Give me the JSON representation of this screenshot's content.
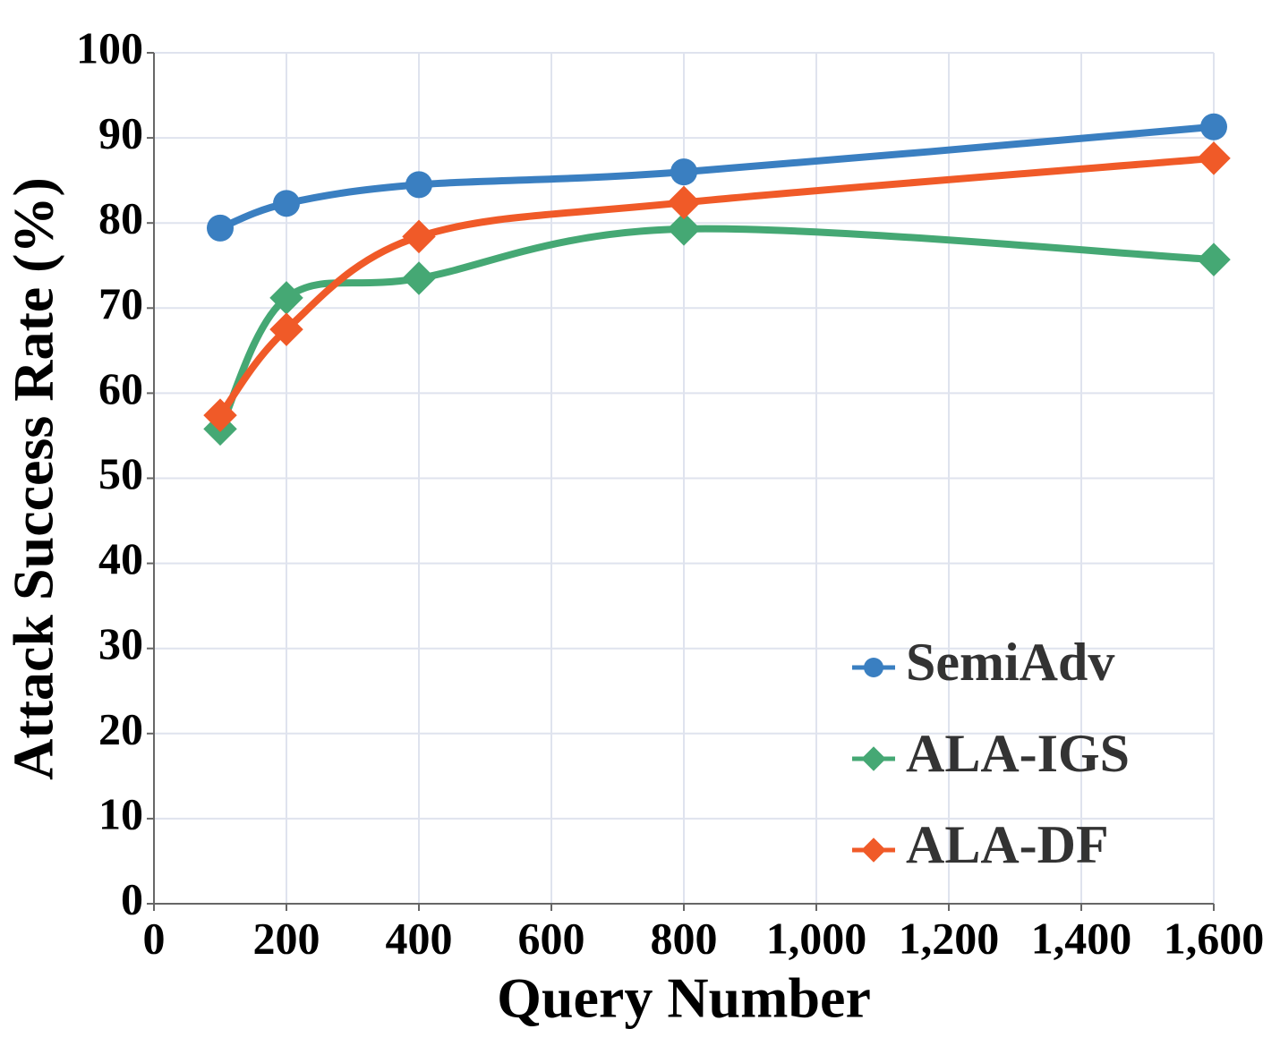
{
  "chart_data": {
    "type": "line",
    "x_label": "Query Number",
    "y_label": "Attack Success Rate (%)",
    "x": [
      100,
      200,
      400,
      800,
      1600
    ],
    "series": [
      {
        "name": "SemiAdv",
        "color": "#3a7fc1",
        "marker": "circle",
        "values": [
          79.4,
          82.3,
          84.5,
          86.0,
          91.3
        ]
      },
      {
        "name": "ALA-IGS",
        "color": "#45a874",
        "marker": "diamond",
        "values": [
          55.8,
          71.2,
          73.5,
          79.3,
          75.7
        ]
      },
      {
        "name": "ALA-DF",
        "color": "#f05a28",
        "marker": "diamond",
        "values": [
          57.4,
          67.5,
          78.4,
          82.4,
          87.6
        ]
      }
    ],
    "xlim": [
      0,
      1600
    ],
    "xticks": [
      0,
      200,
      400,
      600,
      800,
      {
        "value": 1000,
        "label": "1,000"
      },
      {
        "value": 1200,
        "label": "1,200"
      },
      {
        "value": 1400,
        "label": "1,400"
      },
      {
        "value": 1600,
        "label": "1,600"
      }
    ],
    "ylim": [
      0,
      100
    ],
    "yticks": [
      0,
      10,
      20,
      30,
      40,
      50,
      60,
      70,
      80,
      90,
      100
    ],
    "grid": true,
    "legend": "lower right"
  }
}
